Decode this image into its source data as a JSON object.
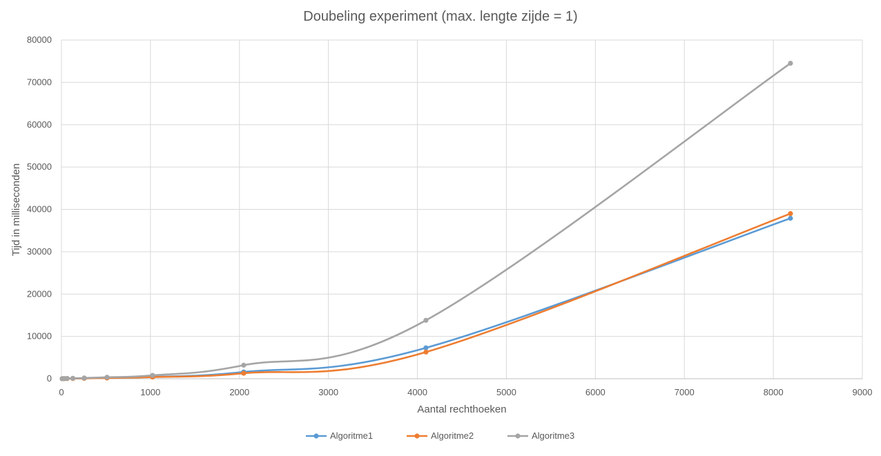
{
  "chart_data": {
    "type": "line",
    "title": "Doubeling experiment (max. lengte zijde = 1)",
    "xlabel": "Aantal rechthoeken",
    "ylabel": "Tijd in milliseconden",
    "xlim": [
      0,
      9000
    ],
    "ylim": [
      0,
      80000
    ],
    "xticks": [
      0,
      1000,
      2000,
      3000,
      4000,
      5000,
      6000,
      7000,
      8000,
      9000
    ],
    "yticks": [
      0,
      10000,
      20000,
      30000,
      40000,
      50000,
      60000,
      70000,
      80000
    ],
    "grid": true,
    "legend_position": "bottom",
    "smooth": true,
    "series": [
      {
        "name": "Algoritme1",
        "color": "#5b9bd5",
        "x": [
          8,
          16,
          32,
          64,
          128,
          256,
          512,
          1024,
          2048,
          4096,
          8192
        ],
        "y": [
          5,
          10,
          20,
          40,
          60,
          100,
          200,
          450,
          1600,
          7300,
          37900
        ]
      },
      {
        "name": "Algoritme2",
        "color": "#ed7d31",
        "x": [
          8,
          16,
          32,
          64,
          128,
          256,
          512,
          1024,
          2048,
          4096,
          8192
        ],
        "y": [
          5,
          10,
          20,
          35,
          55,
          90,
          180,
          400,
          1300,
          6300,
          39000
        ]
      },
      {
        "name": "Algoritme3",
        "color": "#a5a5a5",
        "x": [
          8,
          16,
          32,
          64,
          128,
          256,
          512,
          1024,
          2048,
          4096,
          8192
        ],
        "y": [
          10,
          20,
          40,
          70,
          110,
          180,
          350,
          800,
          3200,
          13800,
          74500
        ]
      }
    ]
  }
}
